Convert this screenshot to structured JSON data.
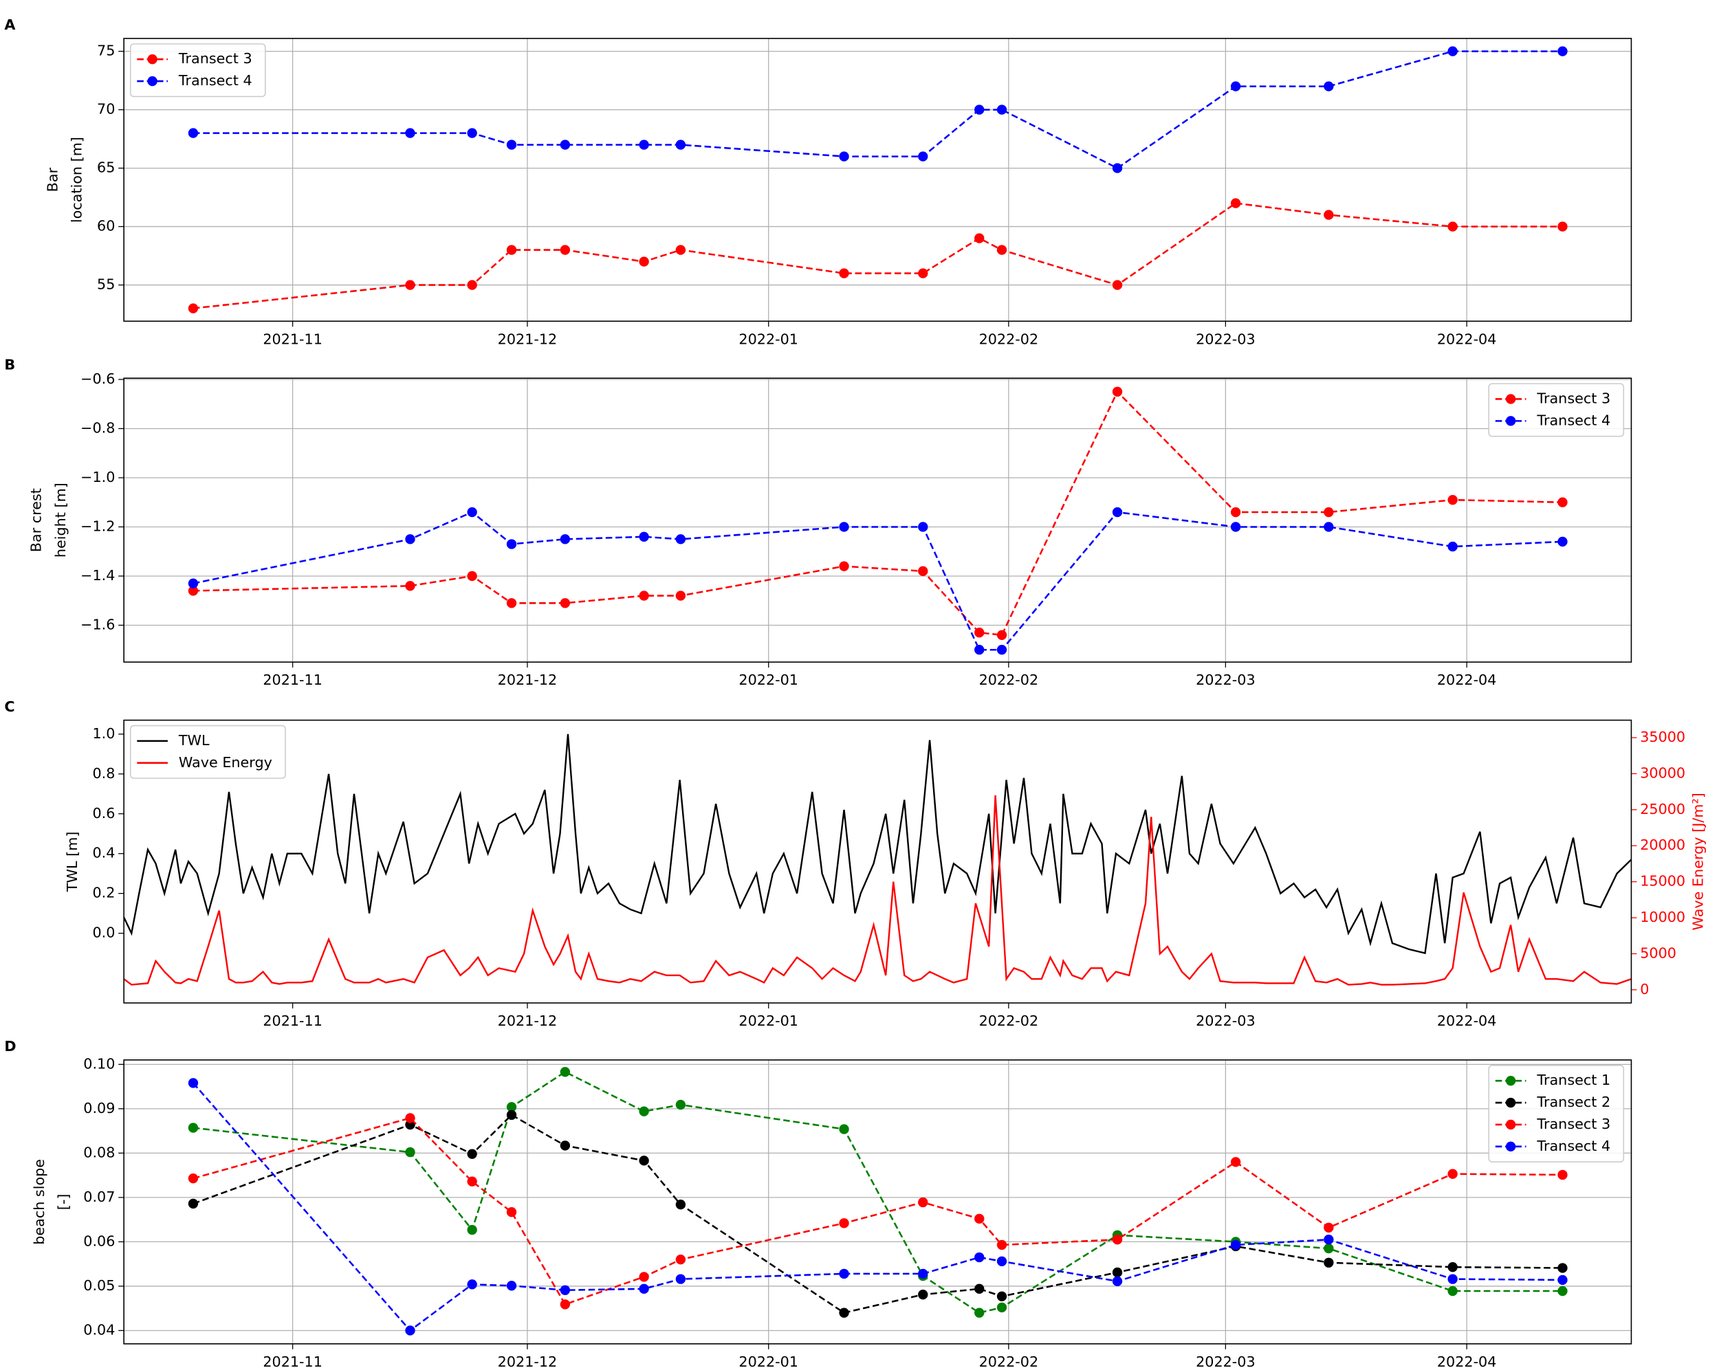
{
  "chart_data": [
    {
      "type": "line",
      "panel": "A",
      "ylabel": [
        "Bar",
        "location [m]"
      ],
      "grid": true,
      "legend": "upper left",
      "marker": true,
      "linestyle": "dashed",
      "xlim": [
        2021.7734,
        2022.3084
      ],
      "xticks": [
        {
          "value": 2021.8333,
          "label": "2021-11"
        },
        {
          "value": 2021.9166,
          "label": "2021-12"
        },
        {
          "value": 2022.0022,
          "label": "2022-01"
        },
        {
          "value": 2022.0874,
          "label": "2022-02"
        },
        {
          "value": 2022.1644,
          "label": "2022-03"
        },
        {
          "value": 2022.25,
          "label": "2022-04"
        }
      ],
      "ylim": [
        51.9,
        76.1
      ],
      "yticks": [
        55,
        60,
        65,
        70,
        75
      ],
      "x": [
        2021.798,
        2021.875,
        2021.897,
        2021.911,
        2021.93,
        2021.958,
        2021.971,
        2022.029,
        2022.057,
        2022.077,
        2022.085,
        2022.126,
        2022.168,
        2022.201,
        2022.245,
        2022.284
      ],
      "series": [
        {
          "name": "Transect 3",
          "color": "#ff0000",
          "values": [
            53,
            55,
            55,
            58,
            58,
            57,
            58,
            56,
            56,
            59,
            58,
            55,
            62,
            61,
            60,
            60
          ]
        },
        {
          "name": "Transect 4",
          "color": "#0000ff",
          "values": [
            68,
            68,
            68,
            67,
            67,
            67,
            67,
            66,
            66,
            70,
            70,
            65,
            72,
            72,
            75,
            75
          ]
        }
      ]
    },
    {
      "type": "line",
      "panel": "B",
      "ylabel": [
        "Bar crest",
        "height [m]"
      ],
      "grid": true,
      "legend": "upper right",
      "marker": true,
      "linestyle": "dashed",
      "xlim": [
        2021.7734,
        2022.3084
      ],
      "xticks": [
        {
          "value": 2021.8333,
          "label": "2021-11"
        },
        {
          "value": 2021.9166,
          "label": "2021-12"
        },
        {
          "value": 2022.0022,
          "label": "2022-01"
        },
        {
          "value": 2022.0874,
          "label": "2022-02"
        },
        {
          "value": 2022.1644,
          "label": "2022-03"
        },
        {
          "value": 2022.25,
          "label": "2022-04"
        }
      ],
      "ylim": [
        -1.75,
        -0.595
      ],
      "yticks": [
        {
          "value": -1.6,
          "label": "−1.6"
        },
        {
          "value": -1.4,
          "label": "−1.4"
        },
        {
          "value": -1.2,
          "label": "−1.2"
        },
        {
          "value": -1.0,
          "label": "−1.0"
        },
        {
          "value": -0.8,
          "label": "−0.8"
        },
        {
          "value": -0.6,
          "label": "−0.6"
        }
      ],
      "x": [
        2021.798,
        2021.875,
        2021.897,
        2021.911,
        2021.93,
        2021.958,
        2021.971,
        2022.029,
        2022.057,
        2022.077,
        2022.085,
        2022.126,
        2022.168,
        2022.201,
        2022.245,
        2022.284
      ],
      "series": [
        {
          "name": "Transect 3",
          "color": "#ff0000",
          "values": [
            -1.46,
            -1.44,
            -1.4,
            -1.51,
            -1.51,
            -1.48,
            -1.48,
            -1.36,
            -1.38,
            -1.63,
            -1.64,
            -0.65,
            -1.14,
            -1.14,
            -1.09,
            -1.1
          ]
        },
        {
          "name": "Transect 4",
          "color": "#0000ff",
          "values": [
            -1.43,
            -1.25,
            -1.14,
            -1.27,
            -1.25,
            -1.24,
            -1.25,
            -1.2,
            -1.2,
            -1.7,
            -1.7,
            -1.14,
            -1.2,
            -1.2,
            -1.28,
            -1.26
          ]
        }
      ]
    },
    {
      "type": "line",
      "panel": "C",
      "ylabel": [
        "TWL [m]"
      ],
      "grid": false,
      "legend": "upper left",
      "marker": false,
      "linestyle": "solid",
      "xlim": [
        2021.7734,
        2022.3084
      ],
      "xticks": [
        {
          "value": 2021.8333,
          "label": "2021-11"
        },
        {
          "value": 2021.9166,
          "label": "2021-12"
        },
        {
          "value": 2022.0022,
          "label": "2022-01"
        },
        {
          "value": 2022.0874,
          "label": "2022-02"
        },
        {
          "value": 2022.1644,
          "label": "2022-03"
        },
        {
          "value": 2022.25,
          "label": "2022-04"
        }
      ],
      "ylim": [
        -0.35,
        1.07
      ],
      "yticks": [
        {
          "value": 0.0,
          "label": "0.0"
        },
        0.2,
        0.4,
        0.6,
        0.8,
        {
          "value": 1.0,
          "label": "1.0"
        }
      ],
      "y2lim": [
        -1830,
        37430
      ],
      "y2ticks": [
        0,
        5000,
        10000,
        15000,
        20000,
        25000,
        30000,
        35000
      ],
      "y2label": "Wave Energy [J/m²]",
      "y2color": "#ff0000",
      "x": [
        2021.7734,
        2021.7761,
        2021.7788,
        2021.7819,
        2021.7847,
        2021.7878,
        2021.7917,
        2021.7936,
        2021.7963,
        2021.7994,
        2021.8033,
        2021.8072,
        2021.8107,
        2021.8131,
        2021.8158,
        2021.8189,
        2021.8228,
        2021.8259,
        2021.8286,
        2021.8314,
        2021.8364,
        2021.8403,
        2021.8461,
        2021.8493,
        2021.852,
        2021.8551,
        2021.8578,
        2021.8605,
        2021.8637,
        2021.8664,
        2021.8726,
        2021.8765,
        2021.8812,
        2021.887,
        2021.8928,
        2021.8959,
        2021.8991,
        2021.9026,
        2021.9065,
        2021.9123,
        2021.9154,
        2021.9185,
        2021.9228,
        2021.9259,
        2021.9282,
        2021.931,
        2021.9337,
        2021.9356,
        2021.9384,
        2021.9415,
        2021.9454,
        2021.9493,
        2021.9531,
        2021.957,
        2021.9617,
        2021.966,
        2021.9707,
        2021.9745,
        2021.9792,
        2021.9835,
        2021.9882,
        2021.9921,
        2021.9979,
        2022.0006,
        2022.0037,
        2022.0076,
        2022.0123,
        2022.0177,
        2022.0212,
        2022.0251,
        2022.029,
        2022.0329,
        2022.0349,
        2022.0395,
        2022.0438,
        2022.0465,
        2022.0504,
        2022.0535,
        2022.0563,
        2022.0594,
        2022.0621,
        2022.0648,
        2022.0679,
        2022.0726,
        2022.0757,
        2022.0804,
        2022.0827,
        2022.0866,
        2022.0893,
        2022.0928,
        2022.0956,
        2022.0991,
        2022.1022,
        2022.1057,
        2022.1068,
        2022.11,
        2022.1135,
        2022.1166,
        2022.1205,
        2022.1224,
        2022.1255,
        2022.1302,
        2022.136,
        2022.138,
        2022.1411,
        2022.1438,
        2022.1489,
        2022.1516,
        2022.1547,
        2022.1594,
        2022.1625,
        2022.1672,
        2022.1749,
        2022.1788,
        2022.1839,
        2022.1886,
        2022.1924,
        2022.1963,
        2022.2002,
        2022.2041,
        2022.208,
        2022.2127,
        2022.2158,
        2022.2197,
        2022.2236,
        2022.2294,
        2022.2352,
        2022.2391,
        2022.2422,
        2022.245,
        2022.2489,
        2022.2547,
        2022.2586,
        2022.2617,
        2022.2656,
        2022.2683,
        2022.2722,
        2022.278,
        2022.2819,
        2022.2878,
        2022.2917,
        2022.2975,
        2022.3033,
        2022.3084
      ],
      "series": [
        {
          "name": "TWL",
          "color": "#000000",
          "values": [
            0.08,
            0.0,
            0.2,
            0.42,
            0.35,
            0.2,
            0.42,
            0.25,
            0.36,
            0.3,
            0.1,
            0.3,
            0.71,
            0.45,
            0.2,
            0.33,
            0.18,
            0.4,
            0.25,
            0.4,
            0.4,
            0.3,
            0.8,
            0.4,
            0.25,
            0.7,
            0.4,
            0.1,
            0.4,
            0.3,
            0.56,
            0.25,
            0.3,
            0.5,
            0.7,
            0.35,
            0.55,
            0.4,
            0.55,
            0.6,
            0.5,
            0.55,
            0.72,
            0.3,
            0.5,
            1.0,
            0.5,
            0.2,
            0.33,
            0.2,
            0.25,
            0.15,
            0.12,
            0.1,
            0.35,
            0.15,
            0.77,
            0.2,
            0.3,
            0.65,
            0.3,
            0.13,
            0.3,
            0.1,
            0.3,
            0.4,
            0.2,
            0.71,
            0.3,
            0.15,
            0.62,
            0.1,
            0.2,
            0.35,
            0.6,
            0.3,
            0.67,
            0.15,
            0.5,
            0.97,
            0.5,
            0.2,
            0.35,
            0.3,
            0.2,
            0.6,
            0.1,
            0.77,
            0.45,
            0.78,
            0.4,
            0.3,
            0.55,
            0.15,
            0.7,
            0.4,
            0.4,
            0.55,
            0.45,
            0.1,
            0.4,
            0.35,
            0.62,
            0.4,
            0.55,
            0.3,
            0.79,
            0.4,
            0.35,
            0.65,
            0.45,
            0.35,
            0.53,
            0.4,
            0.2,
            0.25,
            0.18,
            0.22,
            0.13,
            0.22,
            0.0,
            0.12,
            -0.05,
            0.15,
            -0.05,
            -0.08,
            -0.1,
            0.3,
            -0.05,
            0.28,
            0.3,
            0.51,
            0.05,
            0.25,
            0.28,
            0.08,
            0.23,
            0.38,
            0.15,
            0.48,
            0.15,
            0.13,
            0.3,
            0.37
          ]
        },
        {
          "name": "Wave Energy",
          "color": "#ff0000",
          "axis": "y2",
          "values": [
            1500,
            700,
            800,
            900,
            4000,
            2500,
            1000,
            900,
            1500,
            1200,
            6000,
            11000,
            1500,
            1000,
            1000,
            1200,
            2500,
            1000,
            800,
            1000,
            1000,
            1200,
            7000,
            4000,
            1500,
            1000,
            1000,
            1000,
            1500,
            1000,
            1500,
            1000,
            4500,
            5500,
            2000,
            3000,
            4500,
            2000,
            3000,
            2500,
            5000,
            11000,
            6000,
            3500,
            5000,
            7500,
            2500,
            1500,
            5000,
            1500,
            1200,
            1000,
            1500,
            1200,
            2500,
            2000,
            2000,
            1000,
            1200,
            4000,
            2000,
            2500,
            1500,
            1000,
            3000,
            2000,
            4500,
            3000,
            1500,
            3000,
            2000,
            1200,
            2500,
            9000,
            2000,
            15000,
            2000,
            1200,
            1500,
            2500,
            2000,
            1500,
            1000,
            1500,
            12000,
            6000,
            27000,
            1500,
            3000,
            2500,
            1500,
            1500,
            4500,
            2000,
            4000,
            2000,
            1500,
            3000,
            3000,
            1200,
            2500,
            2000,
            12000,
            24000,
            5000,
            6000,
            2500,
            1500,
            3000,
            5000,
            1200,
            1000,
            1000,
            900,
            900,
            900,
            4500,
            1200,
            1000,
            1500,
            700,
            800,
            1000,
            700,
            700,
            800,
            900,
            1200,
            1500,
            3000,
            13500,
            6000,
            2500,
            3000,
            9000,
            2500,
            7000,
            1500,
            1500,
            1200,
            2500,
            1000,
            800,
            1500
          ]
        }
      ]
    },
    {
      "type": "line",
      "panel": "D",
      "ylabel": [
        "beach slope",
        "[-]"
      ],
      "grid": true,
      "legend": "upper right",
      "marker": true,
      "linestyle": "dashed",
      "xlim": [
        2021.7734,
        2022.3084
      ],
      "xticks": [
        {
          "value": 2021.8333,
          "label": "2021-11"
        },
        {
          "value": 2021.9166,
          "label": "2021-12"
        },
        {
          "value": 2022.0022,
          "label": "2022-01"
        },
        {
          "value": 2022.0874,
          "label": "2022-02"
        },
        {
          "value": 2022.1644,
          "label": "2022-03"
        },
        {
          "value": 2022.25,
          "label": "2022-04"
        }
      ],
      "ylim": [
        0.037,
        0.101
      ],
      "yticks": [
        0.04,
        0.05,
        0.06,
        0.07,
        0.08,
        0.09,
        {
          "value": 0.1,
          "label": "0.10"
        }
      ],
      "x": [
        2021.798,
        2021.875,
        2021.897,
        2021.911,
        2021.93,
        2021.958,
        2021.971,
        2022.029,
        2022.057,
        2022.077,
        2022.085,
        2022.126,
        2022.168,
        2022.201,
        2022.245,
        2022.284
      ],
      "series": [
        {
          "name": "Transect 1",
          "color": "#008000",
          "values": [
            0.0857,
            0.0802,
            0.0627,
            0.0904,
            0.0983,
            0.0894,
            0.0909,
            0.0854,
            0.0523,
            0.044,
            0.0452,
            0.0615,
            0.06,
            0.0585,
            0.0489,
            0.0489
          ]
        },
        {
          "name": "Transect 2",
          "color": "#000000",
          "values": [
            0.0686,
            0.0864,
            0.0798,
            0.0886,
            0.0817,
            0.0783,
            0.0684,
            0.044,
            0.0481,
            0.0494,
            0.0477,
            0.0531,
            0.059,
            0.0553,
            0.0543,
            0.0541
          ]
        },
        {
          "name": "Transect 3",
          "color": "#ff0000",
          "values": [
            0.0743,
            0.0879,
            0.0736,
            0.0667,
            0.0459,
            0.0521,
            0.056,
            0.0642,
            0.0689,
            0.0652,
            0.0593,
            0.0605,
            0.078,
            0.0632,
            0.0753,
            0.0751
          ]
        },
        {
          "name": "Transect 4",
          "color": "#0000ff",
          "values": [
            0.0958,
            0.04,
            0.0504,
            0.0501,
            0.0491,
            0.0494,
            0.0516,
            0.0528,
            0.0528,
            0.0565,
            0.0556,
            0.0511,
            0.0593,
            0.0605,
            0.0516,
            0.0514
          ]
        }
      ]
    }
  ]
}
